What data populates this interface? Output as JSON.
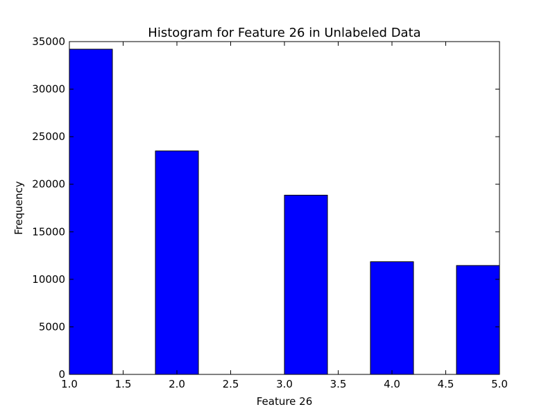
{
  "chart_data": {
    "type": "bar",
    "title": "Histogram for Feature 26 in Unlabeled Data",
    "xlabel": "Feature 26",
    "ylabel": "Frequency",
    "xlim": [
      1.0,
      5.0
    ],
    "ylim": [
      0,
      35000
    ],
    "x_ticks": [
      "1.0",
      "1.5",
      "2.0",
      "2.5",
      "3.0",
      "3.5",
      "4.0",
      "4.5",
      "5.0"
    ],
    "y_ticks": [
      "0",
      "5000",
      "10000",
      "15000",
      "20000",
      "25000",
      "30000",
      "35000"
    ],
    "bins": [
      {
        "x0": 1.0,
        "x1": 1.4,
        "value": 34200
      },
      {
        "x0": 1.4,
        "x1": 1.8,
        "value": 0
      },
      {
        "x0": 1.8,
        "x1": 2.2,
        "value": 23500
      },
      {
        "x0": 2.2,
        "x1": 2.6,
        "value": 0
      },
      {
        "x0": 2.6,
        "x1": 3.0,
        "value": 0
      },
      {
        "x0": 3.0,
        "x1": 3.4,
        "value": 18850
      },
      {
        "x0": 3.4,
        "x1": 3.8,
        "value": 0
      },
      {
        "x0": 3.8,
        "x1": 4.2,
        "value": 11850
      },
      {
        "x0": 4.2,
        "x1": 4.6,
        "value": 0
      },
      {
        "x0": 4.6,
        "x1": 5.0,
        "value": 11450
      }
    ],
    "bar_color": "#0000ff",
    "edge_color": "#000000",
    "grid": false
  }
}
